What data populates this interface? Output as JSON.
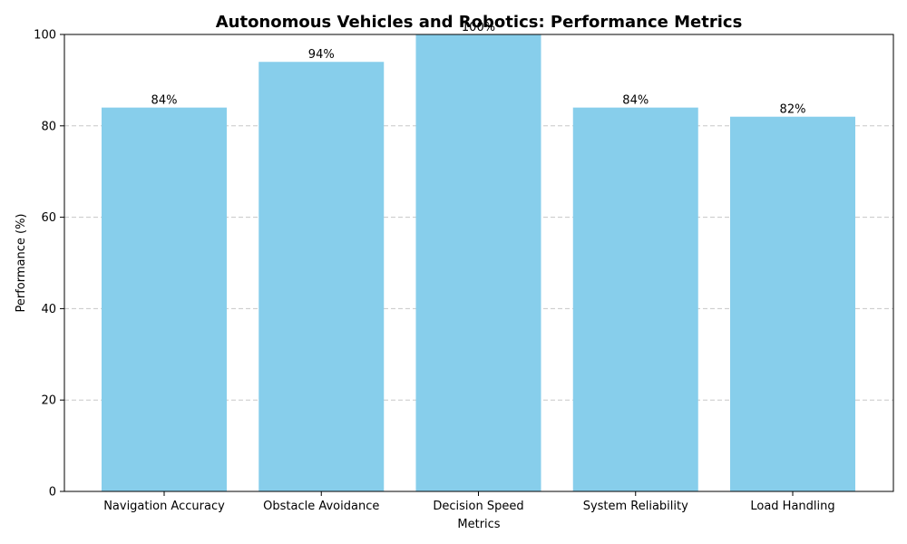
{
  "chart_data": {
    "type": "bar",
    "title": "Autonomous Vehicles and Robotics: Performance Metrics",
    "xlabel": "Metrics",
    "ylabel": "Performance (%)",
    "categories": [
      "Navigation Accuracy",
      "Obstacle Avoidance",
      "Decision Speed",
      "System Reliability",
      "Load Handling"
    ],
    "values": [
      84,
      94,
      100,
      84,
      82
    ],
    "data_labels": [
      "84%",
      "94%",
      "100%",
      "84%",
      "82%"
    ],
    "ylim": [
      0,
      100
    ],
    "yticks": [
      0,
      20,
      40,
      60,
      80,
      100
    ],
    "grid": "y-dashed",
    "legend": "none",
    "bar_color": "#87ceeb"
  }
}
